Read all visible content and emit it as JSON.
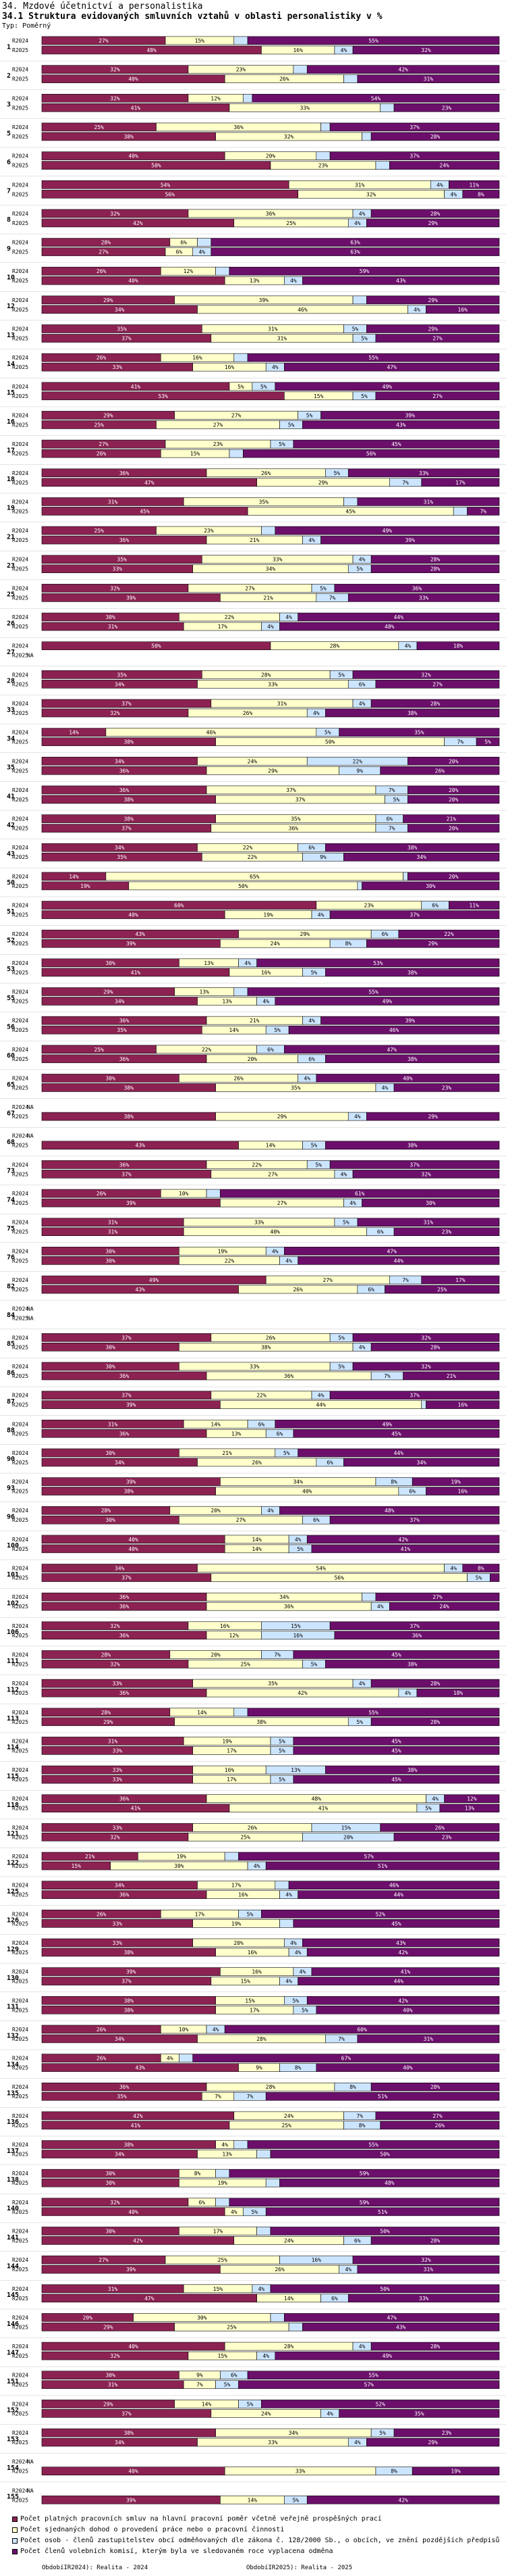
{
  "title": "34. Mzdové účetnictví a personalistika",
  "subtitle": "34.1 Struktura evidovaných smluvních vztahů v oblasti personalistiky v %",
  "type_label": "Typ: Poměrný",
  "colors": {
    "series1": "#8b2252",
    "series2": "#ffffcc",
    "series3": "#cce5ff",
    "series4": "#6b0f6b"
  },
  "chart_data": {
    "type": "bar",
    "stacked": true,
    "orientation": "horizontal",
    "unit": "%",
    "series_names": [
      "Počet platných pracovních smluv na hlavní pracovní poměr včetně veřejně prospěšných prací",
      "Počet sjednaných dohod o provedení práce nebo o pracovní činnosti",
      "Počet osob - členů zastupitelstev obcí odměňovaných dle zákona č. 128/2000 Sb., o obcích, ve znění pozdějších předpisů",
      "Počet členů volebních komisí, kterým byla ve sledovaném roce vyplacena odměna"
    ],
    "groups": [
      {
        "id": "1",
        "r2024": [
          27,
          15,
          3,
          55
        ],
        "r2025": [
          48,
          16,
          4,
          32
        ]
      },
      {
        "id": "2",
        "r2024": [
          32,
          23,
          3,
          42
        ],
        "r2025": [
          40,
          26,
          3,
          31
        ]
      },
      {
        "id": "3",
        "r2024": [
          32,
          12,
          2,
          54
        ],
        "r2025": [
          41,
          33,
          3,
          23
        ]
      },
      {
        "id": "5",
        "r2024": [
          25,
          36,
          2,
          37
        ],
        "r2025": [
          38,
          32,
          2,
          28
        ]
      },
      {
        "id": "6",
        "r2024": [
          40,
          20,
          3,
          37
        ],
        "r2025": [
          50,
          23,
          3,
          24
        ]
      },
      {
        "id": "7",
        "r2024": [
          54,
          31,
          4,
          11
        ],
        "r2025": [
          56,
          32,
          4,
          8
        ]
      },
      {
        "id": "8",
        "r2024": [
          32,
          36,
          4,
          28
        ],
        "r2025": [
          42,
          25,
          4,
          29
        ]
      },
      {
        "id": "9",
        "r2024": [
          28,
          6,
          3,
          63
        ],
        "r2025": [
          27,
          6,
          4,
          63
        ]
      },
      {
        "id": "10",
        "r2024": [
          26,
          12,
          3,
          59
        ],
        "r2025": [
          40,
          13,
          4,
          43
        ]
      },
      {
        "id": "12",
        "r2024": [
          29,
          39,
          3,
          29
        ],
        "r2025": [
          34,
          46,
          4,
          16
        ]
      },
      {
        "id": "13",
        "r2024": [
          35,
          31,
          5,
          29
        ],
        "r2025": [
          37,
          31,
          5,
          27
        ]
      },
      {
        "id": "14",
        "r2024": [
          26,
          16,
          3,
          55
        ],
        "r2025": [
          33,
          16,
          4,
          47
        ]
      },
      {
        "id": "15",
        "r2024": [
          41,
          5,
          5,
          49
        ],
        "r2025": [
          53,
          15,
          5,
          27
        ]
      },
      {
        "id": "16",
        "r2024": [
          29,
          27,
          5,
          39
        ],
        "r2025": [
          25,
          27,
          5,
          43
        ]
      },
      {
        "id": "17",
        "r2024": [
          27,
          23,
          5,
          45
        ],
        "r2025": [
          26,
          15,
          3,
          56
        ]
      },
      {
        "id": "18",
        "r2024": [
          36,
          26,
          5,
          33
        ],
        "r2025": [
          47,
          29,
          7,
          17
        ]
      },
      {
        "id": "19",
        "r2024": [
          31,
          35,
          3,
          31
        ],
        "r2025": [
          45,
          45,
          3,
          7
        ]
      },
      {
        "id": "21",
        "r2024": [
          25,
          23,
          3,
          49
        ],
        "r2025": [
          36,
          21,
          4,
          39
        ]
      },
      {
        "id": "23",
        "r2024": [
          35,
          33,
          4,
          28
        ],
        "r2025": [
          33,
          34,
          5,
          28
        ]
      },
      {
        "id": "25",
        "r2024": [
          32,
          27,
          5,
          36
        ],
        "r2025": [
          39,
          21,
          7,
          33
        ]
      },
      {
        "id": "26",
        "r2024": [
          30,
          22,
          4,
          44
        ],
        "r2025": [
          31,
          17,
          4,
          48
        ]
      },
      {
        "id": "27",
        "r2024": [
          50,
          28,
          4,
          18
        ],
        "r2025": null
      },
      {
        "id": "28",
        "r2024": [
          35,
          28,
          5,
          32
        ],
        "r2025": [
          34,
          33,
          6,
          27
        ]
      },
      {
        "id": "33",
        "r2024": [
          37,
          31,
          4,
          28
        ],
        "r2025": [
          32,
          26,
          4,
          38
        ]
      },
      {
        "id": "34",
        "r2024": [
          14,
          46,
          5,
          35
        ],
        "r2025": [
          38,
          50,
          7,
          5
        ]
      },
      {
        "id": "35",
        "r2024": [
          34,
          24,
          22,
          20
        ],
        "r2025": [
          36,
          29,
          9,
          26
        ]
      },
      {
        "id": "41",
        "r2024": [
          36,
          37,
          7,
          20
        ],
        "r2025": [
          38,
          37,
          5,
          20
        ]
      },
      {
        "id": "42",
        "r2024": [
          38,
          35,
          6,
          21
        ],
        "r2025": [
          37,
          36,
          7,
          20
        ]
      },
      {
        "id": "43",
        "r2024": [
          34,
          22,
          6,
          38
        ],
        "r2025": [
          35,
          22,
          9,
          34
        ]
      },
      {
        "id": "50",
        "r2024": [
          14,
          65,
          1,
          20
        ],
        "r2025": [
          19,
          50,
          1,
          30
        ]
      },
      {
        "id": "51",
        "r2024": [
          60,
          23,
          6,
          11
        ],
        "r2025": [
          40,
          19,
          4,
          37
        ]
      },
      {
        "id": "52",
        "r2024": [
          43,
          29,
          6,
          22
        ],
        "r2025": [
          39,
          24,
          8,
          29
        ]
      },
      {
        "id": "53",
        "r2024": [
          30,
          13,
          4,
          53
        ],
        "r2025": [
          41,
          16,
          5,
          38
        ]
      },
      {
        "id": "55",
        "r2024": [
          29,
          13,
          3,
          55
        ],
        "r2025": [
          34,
          13,
          4,
          49
        ]
      },
      {
        "id": "56",
        "r2024": [
          36,
          21,
          4,
          39
        ],
        "r2025": [
          35,
          14,
          5,
          46
        ]
      },
      {
        "id": "60",
        "r2024": [
          25,
          22,
          6,
          47
        ],
        "r2025": [
          36,
          20,
          6,
          38
        ]
      },
      {
        "id": "65",
        "r2024": [
          30,
          26,
          4,
          40
        ],
        "r2025": [
          38,
          35,
          4,
          23
        ]
      },
      {
        "id": "67",
        "r2024": null,
        "r2025": [
          38,
          29,
          4,
          29
        ]
      },
      {
        "id": "68",
        "r2024": null,
        "r2025": [
          43,
          14,
          5,
          38
        ]
      },
      {
        "id": "73",
        "r2024": [
          36,
          22,
          5,
          37
        ],
        "r2025": [
          37,
          27,
          4,
          32
        ]
      },
      {
        "id": "74",
        "r2024": [
          26,
          10,
          3,
          61
        ],
        "r2025": [
          39,
          27,
          4,
          30
        ]
      },
      {
        "id": "75",
        "r2024": [
          31,
          33,
          5,
          31
        ],
        "r2025": [
          31,
          40,
          6,
          23
        ]
      },
      {
        "id": "76",
        "r2024": [
          30,
          19,
          4,
          47
        ],
        "r2025": [
          30,
          22,
          4,
          44
        ]
      },
      {
        "id": "82",
        "r2024": [
          49,
          27,
          7,
          17
        ],
        "r2025": [
          43,
          26,
          6,
          25
        ]
      },
      {
        "id": "84",
        "r2024": null,
        "r2025": null
      },
      {
        "id": "85",
        "r2024": [
          37,
          26,
          5,
          32
        ],
        "r2025": [
          30,
          38,
          4,
          28
        ]
      },
      {
        "id": "86",
        "r2024": [
          30,
          33,
          5,
          32
        ],
        "r2025": [
          36,
          36,
          7,
          21
        ]
      },
      {
        "id": "87",
        "r2024": [
          37,
          22,
          4,
          37
        ],
        "r2025": [
          39,
          44,
          1,
          16
        ]
      },
      {
        "id": "88",
        "r2024": [
          31,
          14,
          6,
          49
        ],
        "r2025": [
          36,
          13,
          6,
          45
        ]
      },
      {
        "id": "90",
        "r2024": [
          30,
          21,
          5,
          44
        ],
        "r2025": [
          34,
          26,
          6,
          34
        ]
      },
      {
        "id": "93",
        "r2024": [
          39,
          34,
          8,
          19
        ],
        "r2025": [
          38,
          40,
          6,
          16
        ]
      },
      {
        "id": "96",
        "r2024": [
          28,
          20,
          4,
          48
        ],
        "r2025": [
          30,
          27,
          6,
          37
        ]
      },
      {
        "id": "100",
        "r2024": [
          40,
          14,
          4,
          42
        ],
        "r2025": [
          40,
          14,
          5,
          41
        ]
      },
      {
        "id": "101",
        "r2024": [
          34,
          54,
          4,
          8
        ],
        "r2025": [
          37,
          56,
          5,
          2
        ]
      },
      {
        "id": "102",
        "r2024": [
          36,
          34,
          3,
          27
        ],
        "r2025": [
          36,
          36,
          4,
          24
        ]
      },
      {
        "id": "106",
        "r2024": [
          32,
          16,
          15,
          37
        ],
        "r2025": [
          36,
          12,
          16,
          36
        ]
      },
      {
        "id": "111",
        "r2024": [
          28,
          20,
          7,
          45
        ],
        "r2025": [
          32,
          25,
          5,
          38
        ]
      },
      {
        "id": "112",
        "r2024": [
          33,
          35,
          4,
          28
        ],
        "r2025": [
          36,
          42,
          4,
          18
        ]
      },
      {
        "id": "113",
        "r2024": [
          28,
          14,
          3,
          55
        ],
        "r2025": [
          29,
          38,
          5,
          28
        ]
      },
      {
        "id": "114",
        "r2024": [
          31,
          19,
          5,
          45
        ],
        "r2025": [
          33,
          17,
          5,
          45
        ]
      },
      {
        "id": "115",
        "r2024": [
          33,
          16,
          13,
          38
        ],
        "r2025": [
          33,
          17,
          5,
          45
        ]
      },
      {
        "id": "118",
        "r2024": [
          36,
          48,
          4,
          12
        ],
        "r2025": [
          41,
          41,
          5,
          13
        ]
      },
      {
        "id": "121",
        "r2024": [
          33,
          26,
          15,
          26
        ],
        "r2025": [
          32,
          25,
          20,
          23
        ]
      },
      {
        "id": "122",
        "r2024": [
          21,
          19,
          3,
          57
        ],
        "r2025": [
          15,
          30,
          4,
          51
        ]
      },
      {
        "id": "125",
        "r2024": [
          34,
          17,
          3,
          46
        ],
        "r2025": [
          36,
          16,
          4,
          44
        ]
      },
      {
        "id": "126",
        "r2024": [
          26,
          17,
          5,
          52
        ],
        "r2025": [
          33,
          19,
          3,
          45
        ]
      },
      {
        "id": "129",
        "r2024": [
          33,
          20,
          4,
          43
        ],
        "r2025": [
          38,
          16,
          4,
          42
        ]
      },
      {
        "id": "130",
        "r2024": [
          39,
          16,
          4,
          41
        ],
        "r2025": [
          37,
          15,
          4,
          44
        ]
      },
      {
        "id": "131",
        "r2024": [
          38,
          15,
          5,
          42
        ],
        "r2025": [
          38,
          17,
          5,
          40
        ]
      },
      {
        "id": "132",
        "r2024": [
          26,
          10,
          4,
          60
        ],
        "r2025": [
          34,
          28,
          7,
          31
        ]
      },
      {
        "id": "134",
        "r2024": [
          26,
          4,
          3,
          67
        ],
        "r2025": [
          43,
          9,
          8,
          40
        ]
      },
      {
        "id": "135",
        "r2024": [
          36,
          28,
          8,
          28
        ],
        "r2025": [
          35,
          7,
          7,
          51
        ]
      },
      {
        "id": "136",
        "r2024": [
          42,
          24,
          7,
          27
        ],
        "r2025": [
          41,
          25,
          8,
          26
        ]
      },
      {
        "id": "137",
        "r2024": [
          38,
          4,
          3,
          55
        ],
        "r2025": [
          34,
          13,
          3,
          50
        ]
      },
      {
        "id": "138",
        "r2024": [
          30,
          8,
          3,
          59
        ],
        "r2025": [
          30,
          19,
          3,
          48
        ]
      },
      {
        "id": "140",
        "r2024": [
          32,
          6,
          3,
          59
        ],
        "r2025": [
          40,
          4,
          5,
          51
        ]
      },
      {
        "id": "141",
        "r2024": [
          30,
          17,
          3,
          50
        ],
        "r2025": [
          42,
          24,
          6,
          28
        ]
      },
      {
        "id": "144",
        "r2024": [
          27,
          25,
          16,
          32
        ],
        "r2025": [
          39,
          26,
          4,
          31
        ]
      },
      {
        "id": "145",
        "r2024": [
          31,
          15,
          4,
          50
        ],
        "r2025": [
          47,
          14,
          6,
          33
        ]
      },
      {
        "id": "146",
        "r2024": [
          20,
          30,
          3,
          47
        ],
        "r2025": [
          29,
          25,
          3,
          43
        ]
      },
      {
        "id": "147",
        "r2024": [
          40,
          28,
          4,
          28
        ],
        "r2025": [
          32,
          15,
          4,
          49
        ]
      },
      {
        "id": "151",
        "r2024": [
          30,
          9,
          6,
          55
        ],
        "r2025": [
          31,
          7,
          5,
          57
        ]
      },
      {
        "id": "152",
        "r2024": [
          29,
          14,
          5,
          52
        ],
        "r2025": [
          37,
          24,
          4,
          35
        ]
      },
      {
        "id": "153",
        "r2024": [
          38,
          34,
          5,
          23
        ],
        "r2025": [
          34,
          33,
          4,
          29
        ]
      },
      {
        "id": "154",
        "r2024": null,
        "r2025": [
          40,
          33,
          8,
          19
        ]
      },
      {
        "id": "155",
        "r2024": null,
        "r2025": [
          39,
          14,
          5,
          42
        ]
      }
    ]
  },
  "row_labels": {
    "r2024": "R2024",
    "r2025": "R2025"
  },
  "na_label": "NA",
  "footer": {
    "left": "ObdobíIR2024): Realita - 2024",
    "right": "ObdobíIR2025): Realita - 2025"
  }
}
